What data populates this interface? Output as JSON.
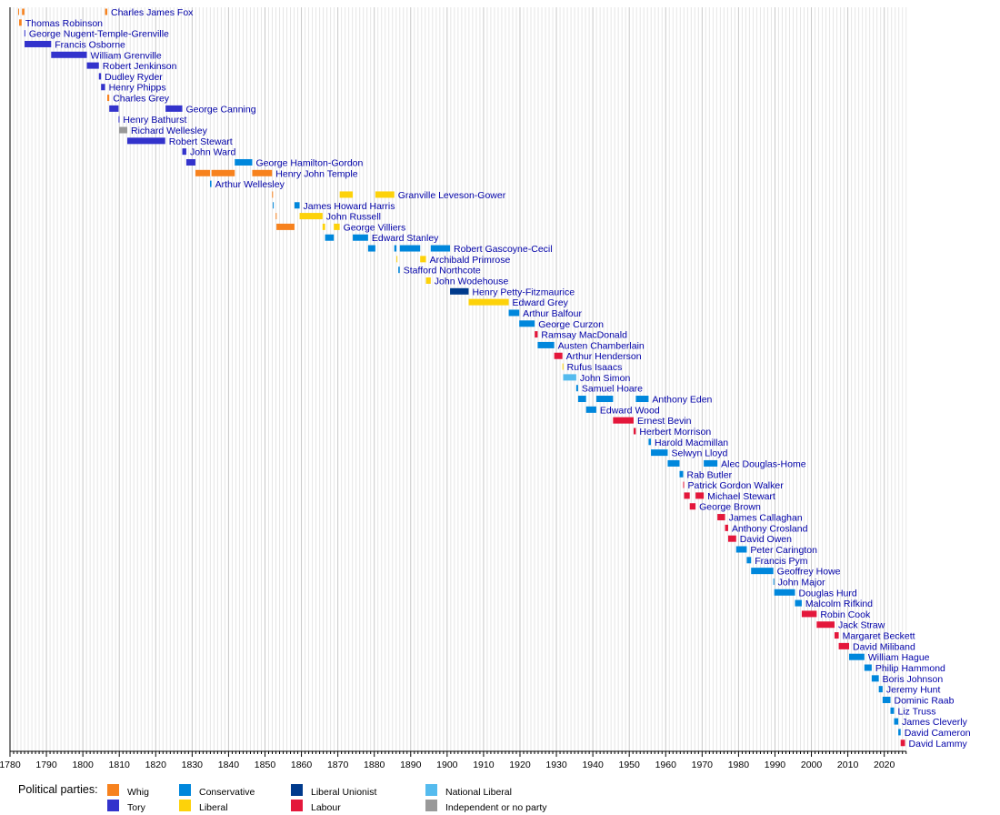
{
  "chart_data": {
    "type": "timeline",
    "xlim": [
      1780,
      2026
    ],
    "grid": true,
    "legend_placement": "bottom-left",
    "x_ticks": [
      "1780",
      "1790",
      "1800",
      "1810",
      "1820",
      "1830",
      "1840",
      "1850",
      "1860",
      "1870",
      "1880",
      "1890",
      "1900",
      "1910",
      "1920",
      "1930",
      "1940",
      "1950",
      "1960",
      "1970",
      "1980",
      "1990",
      "2000",
      "2010",
      "2020"
    ],
    "legend_title": "Political parties:",
    "parties": [
      {
        "key": "whig",
        "name": "Whig",
        "color": "#f7821e"
      },
      {
        "key": "tory",
        "name": "Tory",
        "color": "#3333cc"
      },
      {
        "key": "con",
        "name": "Conservative",
        "color": "#0087dc"
      },
      {
        "key": "lib",
        "name": "Liberal",
        "color": "#fdd20a"
      },
      {
        "key": "lu",
        "name": "Liberal Unionist",
        "color": "#003a8c"
      },
      {
        "key": "lab",
        "name": "Labour",
        "color": "#e4173b"
      },
      {
        "key": "nl",
        "name": "National Liberal",
        "color": "#55bbee"
      },
      {
        "key": "ind",
        "name": "Independent or no party",
        "color": "#999999"
      }
    ],
    "rows": [
      {
        "name": "Charles James Fox",
        "terms": [
          [
            1782.25,
            1782.5,
            "whig"
          ],
          [
            1783.3,
            1783.95,
            "whig"
          ],
          [
            1806.1,
            1806.7,
            "whig"
          ]
        ]
      },
      {
        "name": "Thomas Robinson",
        "terms": [
          [
            1782.5,
            1783.2,
            "whig"
          ]
        ]
      },
      {
        "name": "George Nugent-Temple-Grenville",
        "terms": [
          [
            1783.95,
            1784.05,
            "tory"
          ]
        ]
      },
      {
        "name": "Francis Osborne",
        "terms": [
          [
            1784.0,
            1791.3,
            "tory"
          ]
        ]
      },
      {
        "name": "William Grenville",
        "terms": [
          [
            1791.3,
            1801.1,
            "tory"
          ]
        ]
      },
      {
        "name": "Robert Jenkinson",
        "terms": [
          [
            1801.1,
            1804.4,
            "tory"
          ]
        ]
      },
      {
        "name": "Dudley Ryder",
        "terms": [
          [
            1804.4,
            1805.0,
            "tory"
          ]
        ]
      },
      {
        "name": "Henry Phipps",
        "terms": [
          [
            1805.0,
            1806.1,
            "tory"
          ]
        ]
      },
      {
        "name": "Charles Grey",
        "terms": [
          [
            1806.7,
            1807.25,
            "whig"
          ]
        ]
      },
      {
        "name": "George Canning",
        "terms": [
          [
            1807.25,
            1809.8,
            "tory"
          ],
          [
            1822.7,
            1827.3,
            "tory"
          ]
        ]
      },
      {
        "name": "Henry Bathurst",
        "terms": [
          [
            1809.8,
            1809.95,
            "tory"
          ]
        ]
      },
      {
        "name": "Richard Wellesley",
        "terms": [
          [
            1809.95,
            1812.2,
            "ind"
          ]
        ]
      },
      {
        "name": "Robert Stewart",
        "terms": [
          [
            1812.2,
            1822.6,
            "tory"
          ]
        ]
      },
      {
        "name": "John Ward",
        "terms": [
          [
            1827.3,
            1828.4,
            "tory"
          ]
        ]
      },
      {
        "name": "George Hamilton-Gordon",
        "terms": [
          [
            1828.4,
            1830.9,
            "tory"
          ],
          [
            1841.7,
            1846.5,
            "con"
          ]
        ]
      },
      {
        "name": "Henry John Temple",
        "terms": [
          [
            1830.9,
            1834.9,
            "whig"
          ],
          [
            1835.3,
            1841.7,
            "whig"
          ],
          [
            1846.5,
            1851.95,
            "whig"
          ]
        ]
      },
      {
        "name": "Arthur Wellesley",
        "terms": [
          [
            1834.9,
            1835.3,
            "con"
          ]
        ]
      },
      {
        "name": "Granville Leveson-Gower",
        "terms": [
          [
            1851.95,
            1852.2,
            "whig"
          ],
          [
            1870.5,
            1874.1,
            "lib"
          ],
          [
            1880.3,
            1885.5,
            "lib"
          ]
        ]
      },
      {
        "name": "James Howard Harris",
        "terms": [
          [
            1852.15,
            1852.35,
            "con"
          ],
          [
            1858.1,
            1859.5,
            "con"
          ]
        ]
      },
      {
        "name": "John Russell",
        "terms": [
          [
            1852.95,
            1853.2,
            "whig"
          ],
          [
            1859.5,
            1865.8,
            "lib"
          ]
        ]
      },
      {
        "name": "George Villiers",
        "terms": [
          [
            1853.15,
            1858.1,
            "whig"
          ],
          [
            1865.8,
            1866.5,
            "lib"
          ],
          [
            1868.9,
            1870.5,
            "lib"
          ]
        ]
      },
      {
        "name": "Edward Stanley",
        "terms": [
          [
            1866.5,
            1868.9,
            "con"
          ],
          [
            1874.1,
            1878.3,
            "con"
          ]
        ]
      },
      {
        "name": "Robert Gascoyne-Cecil",
        "terms": [
          [
            1878.3,
            1880.3,
            "con"
          ],
          [
            1885.5,
            1886.1,
            "con"
          ],
          [
            1887.0,
            1892.6,
            "con"
          ],
          [
            1895.5,
            1900.8,
            "con"
          ]
        ]
      },
      {
        "name": "Archibald Primrose",
        "terms": [
          [
            1886.1,
            1886.3,
            "lib"
          ],
          [
            1892.6,
            1894.2,
            "lib"
          ]
        ]
      },
      {
        "name": "Stafford Northcote",
        "terms": [
          [
            1886.6,
            1887.0,
            "con"
          ]
        ]
      },
      {
        "name": "John Wodehouse",
        "terms": [
          [
            1894.2,
            1895.5,
            "lib"
          ]
        ]
      },
      {
        "name": "Henry Petty-Fitzmaurice",
        "terms": [
          [
            1900.8,
            1905.9,
            "lu"
          ]
        ]
      },
      {
        "name": "Edward Grey",
        "terms": [
          [
            1905.9,
            1916.9,
            "lib"
          ]
        ]
      },
      {
        "name": "Arthur Balfour",
        "terms": [
          [
            1916.9,
            1919.8,
            "con"
          ]
        ]
      },
      {
        "name": "George Curzon",
        "terms": [
          [
            1919.8,
            1924.05,
            "con"
          ]
        ]
      },
      {
        "name": "Ramsay MacDonald",
        "terms": [
          [
            1924.05,
            1924.85,
            "lab"
          ]
        ]
      },
      {
        "name": "Austen Chamberlain",
        "terms": [
          [
            1924.85,
            1929.4,
            "con"
          ]
        ]
      },
      {
        "name": "Arthur Henderson",
        "terms": [
          [
            1929.4,
            1931.65,
            "lab"
          ]
        ]
      },
      {
        "name": "Rufus Isaacs",
        "terms": [
          [
            1931.65,
            1931.85,
            "lib"
          ]
        ]
      },
      {
        "name": "John Simon",
        "terms": [
          [
            1931.85,
            1935.45,
            "nl"
          ]
        ]
      },
      {
        "name": "Samuel Hoare",
        "terms": [
          [
            1935.45,
            1935.95,
            "con"
          ]
        ]
      },
      {
        "name": "Anthony Eden",
        "terms": [
          [
            1935.95,
            1938.15,
            "con"
          ],
          [
            1940.95,
            1945.55,
            "con"
          ],
          [
            1951.8,
            1955.3,
            "con"
          ]
        ]
      },
      {
        "name": "Edward Wood",
        "terms": [
          [
            1938.15,
            1940.95,
            "con"
          ]
        ]
      },
      {
        "name": "Ernest Bevin",
        "terms": [
          [
            1945.55,
            1951.2,
            "lab"
          ]
        ]
      },
      {
        "name": "Herbert Morrison",
        "terms": [
          [
            1951.2,
            1951.8,
            "lab"
          ]
        ]
      },
      {
        "name": "Harold Macmillan",
        "terms": [
          [
            1955.3,
            1955.95,
            "con"
          ]
        ]
      },
      {
        "name": "Selwyn Lloyd",
        "terms": [
          [
            1955.95,
            1960.55,
            "con"
          ]
        ]
      },
      {
        "name": "Alec Douglas-Home",
        "terms": [
          [
            1960.55,
            1963.8,
            "con"
          ],
          [
            1970.45,
            1974.2,
            "con"
          ]
        ]
      },
      {
        "name": "Rab Butler",
        "terms": [
          [
            1963.8,
            1964.8,
            "con"
          ]
        ]
      },
      {
        "name": "Patrick Gordon Walker",
        "terms": [
          [
            1964.8,
            1965.05,
            "lab"
          ]
        ]
      },
      {
        "name": "Michael Stewart",
        "terms": [
          [
            1965.05,
            1966.6,
            "lab"
          ],
          [
            1968.2,
            1970.45,
            "lab"
          ]
        ]
      },
      {
        "name": "George Brown",
        "terms": [
          [
            1966.6,
            1968.2,
            "lab"
          ]
        ]
      },
      {
        "name": "James Callaghan",
        "terms": [
          [
            1974.2,
            1976.3,
            "lab"
          ]
        ]
      },
      {
        "name": "Anthony Crosland",
        "terms": [
          [
            1976.3,
            1977.15,
            "lab"
          ]
        ]
      },
      {
        "name": "David Owen",
        "terms": [
          [
            1977.15,
            1979.35,
            "lab"
          ]
        ]
      },
      {
        "name": "Peter Carington",
        "terms": [
          [
            1979.35,
            1982.25,
            "con"
          ]
        ]
      },
      {
        "name": "Francis Pym",
        "terms": [
          [
            1982.25,
            1983.45,
            "con"
          ]
        ]
      },
      {
        "name": "Geoffrey Howe",
        "terms": [
          [
            1983.45,
            1989.55,
            "con"
          ]
        ]
      },
      {
        "name": "John Major",
        "terms": [
          [
            1989.55,
            1989.8,
            "con"
          ]
        ]
      },
      {
        "name": "Douglas Hurd",
        "terms": [
          [
            1989.8,
            1995.5,
            "con"
          ]
        ]
      },
      {
        "name": "Malcolm Rifkind",
        "terms": [
          [
            1995.5,
            1997.35,
            "con"
          ]
        ]
      },
      {
        "name": "Robin Cook",
        "terms": [
          [
            1997.35,
            2001.45,
            "lab"
          ]
        ]
      },
      {
        "name": "Jack Straw",
        "terms": [
          [
            2001.45,
            2006.35,
            "lab"
          ]
        ]
      },
      {
        "name": "Margaret Beckett",
        "terms": [
          [
            2006.35,
            2007.5,
            "lab"
          ]
        ]
      },
      {
        "name": "David Miliband",
        "terms": [
          [
            2007.5,
            2010.35,
            "lab"
          ]
        ]
      },
      {
        "name": "William Hague",
        "terms": [
          [
            2010.35,
            2014.55,
            "con"
          ]
        ]
      },
      {
        "name": "Philip Hammond",
        "terms": [
          [
            2014.55,
            2016.55,
            "con"
          ]
        ]
      },
      {
        "name": "Boris Johnson",
        "terms": [
          [
            2016.55,
            2018.5,
            "con"
          ]
        ]
      },
      {
        "name": "Jeremy Hunt",
        "terms": [
          [
            2018.5,
            2019.55,
            "con"
          ]
        ]
      },
      {
        "name": "Dominic Raab",
        "terms": [
          [
            2019.55,
            2021.7,
            "con"
          ]
        ]
      },
      {
        "name": "Liz Truss",
        "terms": [
          [
            2021.7,
            2022.7,
            "con"
          ]
        ]
      },
      {
        "name": "James Cleverly",
        "terms": [
          [
            2022.7,
            2023.85,
            "con"
          ]
        ]
      },
      {
        "name": "David Cameron",
        "terms": [
          [
            2023.85,
            2024.5,
            "con"
          ]
        ]
      },
      {
        "name": "David Lammy",
        "terms": [
          [
            2024.5,
            2025.7,
            "lab"
          ]
        ]
      }
    ]
  }
}
